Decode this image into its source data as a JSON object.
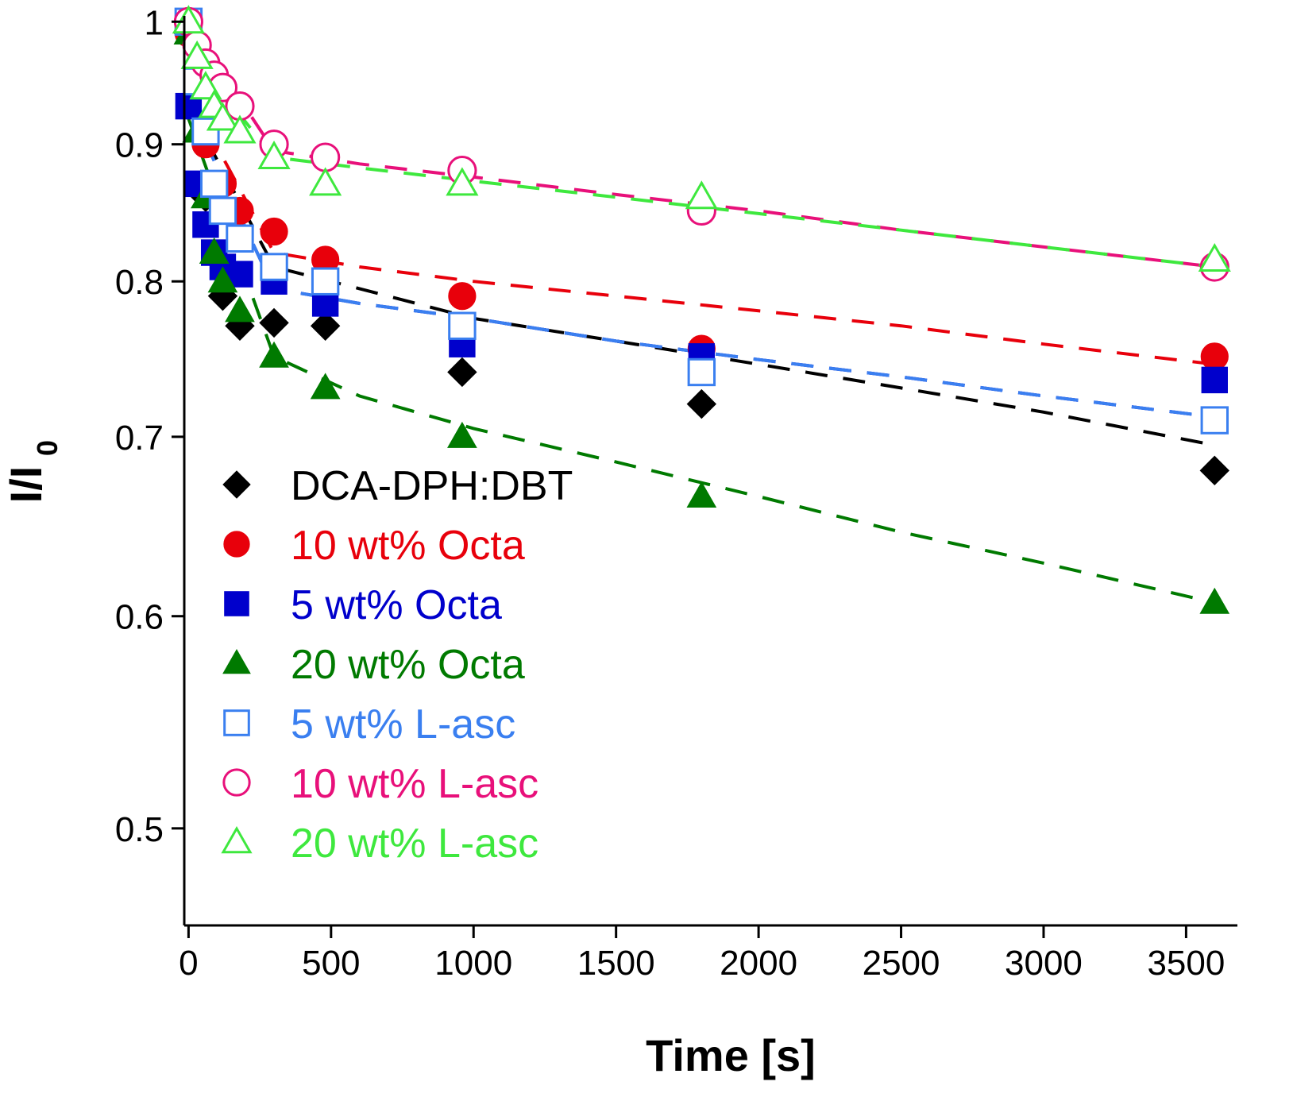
{
  "chart_data": {
    "type": "scatter",
    "title": "",
    "xlabel": "Time [s]",
    "ylabel_main": "I/I",
    "ylabel_sub": "0",
    "xlim": [
      -15,
      3680
    ],
    "ylim": [
      0.46,
      1.005
    ],
    "yscale": "log",
    "xticks": [
      0,
      500,
      1000,
      1500,
      2000,
      2500,
      3000,
      3500
    ],
    "xtick_labels": [
      "0",
      "500",
      "1000",
      "1500",
      "2000",
      "2500",
      "3000",
      "3500"
    ],
    "yticks": [
      0.5,
      0.6,
      0.7,
      0.8,
      0.9,
      1.0
    ],
    "ytick_labels": [
      "0.5",
      "0.6",
      "0.7",
      "0.8",
      "0.9",
      "1"
    ],
    "grid": false,
    "legend_position": "lower-left",
    "series": [
      {
        "name": "DCA-DPH:DBT",
        "color": "#000000",
        "marker": "diamond-filled",
        "x": [
          0,
          60,
          120,
          180,
          300,
          480,
          960,
          1800,
          3600
        ],
        "y": [
          0.99,
          0.86,
          0.79,
          0.77,
          0.772,
          0.77,
          0.74,
          0.72,
          0.68
        ],
        "fit": [
          [
            0,
            0.93
          ],
          [
            300,
            0.81
          ],
          [
            600,
            0.795
          ],
          [
            1000,
            0.775
          ],
          [
            1500,
            0.76
          ],
          [
            2000,
            0.745
          ],
          [
            2500,
            0.73
          ],
          [
            3000,
            0.715
          ],
          [
            3600,
            0.695
          ]
        ]
      },
      {
        "name": "10 wt% Octa",
        "color": "#e8000b",
        "marker": "circle-filled",
        "x": [
          0,
          60,
          120,
          180,
          300,
          480,
          960,
          1800,
          3600
        ],
        "y": [
          0.99,
          0.9,
          0.87,
          0.85,
          0.835,
          0.815,
          0.79,
          0.755,
          0.75
        ],
        "fit": [
          [
            0,
            0.94
          ],
          [
            300,
            0.82
          ],
          [
            600,
            0.81
          ],
          [
            1000,
            0.8
          ],
          [
            1500,
            0.79
          ],
          [
            2000,
            0.78
          ],
          [
            2500,
            0.77
          ],
          [
            3000,
            0.758
          ],
          [
            3600,
            0.745
          ]
        ]
      },
      {
        "name": "5 wt% Octa",
        "color": "#0000cc",
        "marker": "square-filled",
        "x": [
          0,
          30,
          60,
          90,
          120,
          180,
          300,
          480,
          960,
          1800,
          3600
        ],
        "y": [
          0.93,
          0.87,
          0.84,
          0.82,
          0.81,
          0.805,
          0.8,
          0.785,
          0.758,
          0.75,
          0.735
        ],
        "fit": [
          [
            0,
            0.93
          ],
          [
            300,
            0.795
          ],
          [
            600,
            0.785
          ],
          [
            1000,
            0.775
          ],
          [
            1500,
            0.76
          ],
          [
            2000,
            0.748
          ],
          [
            2500,
            0.737
          ],
          [
            3000,
            0.725
          ],
          [
            3600,
            0.712
          ]
        ]
      },
      {
        "name": "20 wt% Octa",
        "color": "#007a00",
        "marker": "triangle-filled",
        "x": [
          0,
          30,
          60,
          90,
          120,
          180,
          300,
          480,
          960,
          1800,
          3600
        ],
        "y": [
          0.99,
          0.91,
          0.86,
          0.82,
          0.8,
          0.78,
          0.75,
          0.73,
          0.7,
          0.665,
          0.607
        ],
        "fit": [
          [
            0,
            0.92
          ],
          [
            300,
            0.75
          ],
          [
            600,
            0.725
          ],
          [
            1000,
            0.705
          ],
          [
            1500,
            0.685
          ],
          [
            2000,
            0.665
          ],
          [
            2500,
            0.645
          ],
          [
            3000,
            0.628
          ],
          [
            3600,
            0.607
          ]
        ]
      },
      {
        "name": "5 wt% L-asc",
        "color": "#3a7ff0",
        "marker": "square-open",
        "x": [
          0,
          30,
          60,
          90,
          120,
          180,
          300,
          480,
          960,
          1800,
          3600
        ],
        "y": [
          1.0,
          0.95,
          0.91,
          0.87,
          0.85,
          0.83,
          0.81,
          0.8,
          0.77,
          0.74,
          0.71
        ],
        "fit": [
          [
            0,
            0.93
          ],
          [
            300,
            0.795
          ],
          [
            600,
            0.785
          ],
          [
            1000,
            0.775
          ],
          [
            1500,
            0.76
          ],
          [
            2000,
            0.748
          ],
          [
            2500,
            0.737
          ],
          [
            3000,
            0.725
          ],
          [
            3600,
            0.712
          ]
        ]
      },
      {
        "name": "10 wt% L-asc",
        "color": "#e8107a",
        "marker": "circle-open",
        "x": [
          0,
          30,
          60,
          90,
          120,
          180,
          300,
          480,
          960,
          1800,
          3600
        ],
        "y": [
          1.0,
          0.98,
          0.965,
          0.955,
          0.945,
          0.93,
          0.9,
          0.89,
          0.88,
          0.85,
          0.81
        ],
        "fit": [
          [
            0,
            1.0
          ],
          [
            300,
            0.895
          ],
          [
            600,
            0.885
          ],
          [
            1000,
            0.875
          ],
          [
            1500,
            0.862
          ],
          [
            2000,
            0.85
          ],
          [
            2500,
            0.836
          ],
          [
            3000,
            0.824
          ],
          [
            3600,
            0.81
          ]
        ]
      },
      {
        "name": "20 wt% L-asc",
        "color": "#3ee83e",
        "marker": "triangle-open",
        "x": [
          0,
          30,
          60,
          90,
          120,
          180,
          300,
          480,
          960,
          1800,
          3600
        ],
        "y": [
          1.0,
          0.97,
          0.945,
          0.93,
          0.92,
          0.91,
          0.89,
          0.87,
          0.87,
          0.86,
          0.815
        ],
        "fit": [
          [
            0,
            0.975
          ],
          [
            300,
            0.89
          ],
          [
            600,
            0.882
          ],
          [
            1000,
            0.872
          ],
          [
            1500,
            0.86
          ],
          [
            2000,
            0.848
          ],
          [
            2500,
            0.836
          ],
          [
            3000,
            0.824
          ],
          [
            3600,
            0.81
          ]
        ]
      }
    ]
  }
}
